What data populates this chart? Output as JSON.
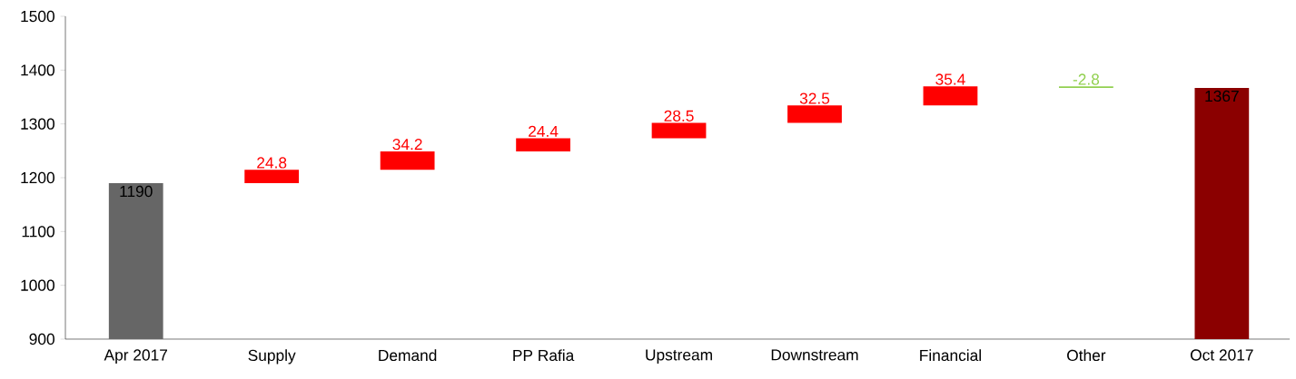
{
  "chart_data": {
    "type": "bar",
    "categories": [
      "Apr 2017",
      "Supply",
      "Demand",
      "PP Rafia",
      "Upstream",
      "Downstream",
      "Financial",
      "Other",
      "Oct 2017"
    ],
    "values": [
      1190,
      24.8,
      34.2,
      24.4,
      28.5,
      32.5,
      35.4,
      -2.8,
      1367
    ],
    "base": [
      null,
      1190,
      1214.8,
      1249,
      1273.4,
      1301.9,
      1334.4,
      1369.8,
      null
    ],
    "colors": [
      "#666666",
      "#ff0000",
      "#ff0000",
      "#ff0000",
      "#ff0000",
      "#ff0000",
      "#ff0000",
      "#92d050",
      "#8b0000"
    ],
    "ylim": [
      900,
      1500
    ],
    "yticks": [
      900,
      1000,
      1100,
      1200,
      1300,
      1400,
      1500
    ],
    "data_labels": true
  }
}
